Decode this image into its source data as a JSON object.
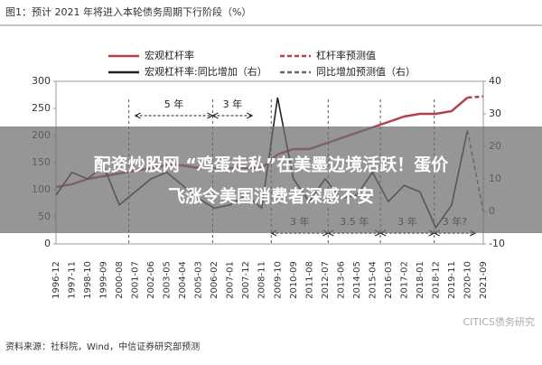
{
  "chart_data": {
    "type": "line",
    "title": "图1：预计 2021 年将进入本轮债务周期下行阶段（%）",
    "categories": [
      "1996-12",
      "1997-11",
      "1998-10",
      "1999-09",
      "2000-08",
      "2001-07",
      "2002-06",
      "2003-05",
      "2004-04",
      "2005-03",
      "2006-02",
      "2007-01",
      "2007-12",
      "2008-11",
      "2009-10",
      "2010-09",
      "2011-08",
      "2012-07",
      "2013-06",
      "2014-05",
      "2015-04",
      "2016-03",
      "2017-02",
      "2018-01",
      "2018-12",
      "2019-11",
      "2020-10",
      "2021-09"
    ],
    "series": [
      {
        "name": "宏观杠杆率",
        "color": "#b5404a",
        "dash": false,
        "axis": "y",
        "values": [
          105,
          110,
          120,
          125,
          130,
          135,
          140,
          145,
          145,
          140,
          140,
          140,
          140,
          140,
          165,
          175,
          175,
          185,
          195,
          205,
          215,
          225,
          235,
          240,
          240,
          245,
          270,
          null
        ]
      },
      {
        "name": "杠杆率预测值",
        "color": "#b5404a",
        "dash": true,
        "axis": "y",
        "values": [
          null,
          null,
          null,
          null,
          null,
          null,
          null,
          null,
          null,
          null,
          null,
          null,
          null,
          null,
          null,
          null,
          null,
          null,
          null,
          null,
          null,
          null,
          null,
          null,
          null,
          null,
          270,
          272
        ]
      },
      {
        "name": "宏观杠杆率:同比增加（右）",
        "color": "#222222",
        "dash": false,
        "axis": "y2",
        "values": [
          5,
          12,
          10,
          14,
          2,
          6,
          10,
          12,
          8,
          4,
          1,
          2,
          5,
          1,
          35,
          10,
          3,
          10,
          4,
          5,
          12,
          3,
          8,
          6,
          -5,
          2,
          25,
          null
        ]
      },
      {
        "name": "同比增加预测值（右）",
        "color": "#666666",
        "dash": true,
        "axis": "y2",
        "values": [
          null,
          null,
          null,
          null,
          null,
          null,
          null,
          null,
          null,
          null,
          null,
          null,
          null,
          null,
          null,
          null,
          null,
          null,
          null,
          null,
          null,
          null,
          null,
          null,
          null,
          null,
          25,
          0
        ]
      }
    ],
    "ylim": [
      0,
      300
    ],
    "yticks": [
      0,
      50,
      100,
      150,
      200,
      250,
      300
    ],
    "y2lim": [
      -10,
      40
    ],
    "y2ticks": [
      -10,
      0,
      10,
      20,
      30,
      40
    ],
    "annotations": [
      "5 年",
      "3 年",
      "3 年",
      "3.5 年",
      "3 年",
      "3 年?"
    ],
    "source": "资料来源：社科院，Wind，中信证券研究部预测",
    "watermark": "CITICS债务研究"
  },
  "overlay_caption": [
    "配资炒股网 “鸡蛋走私”在美墨边境活跃！蛋价",
    "飞涨令美国消费者深感不安"
  ]
}
